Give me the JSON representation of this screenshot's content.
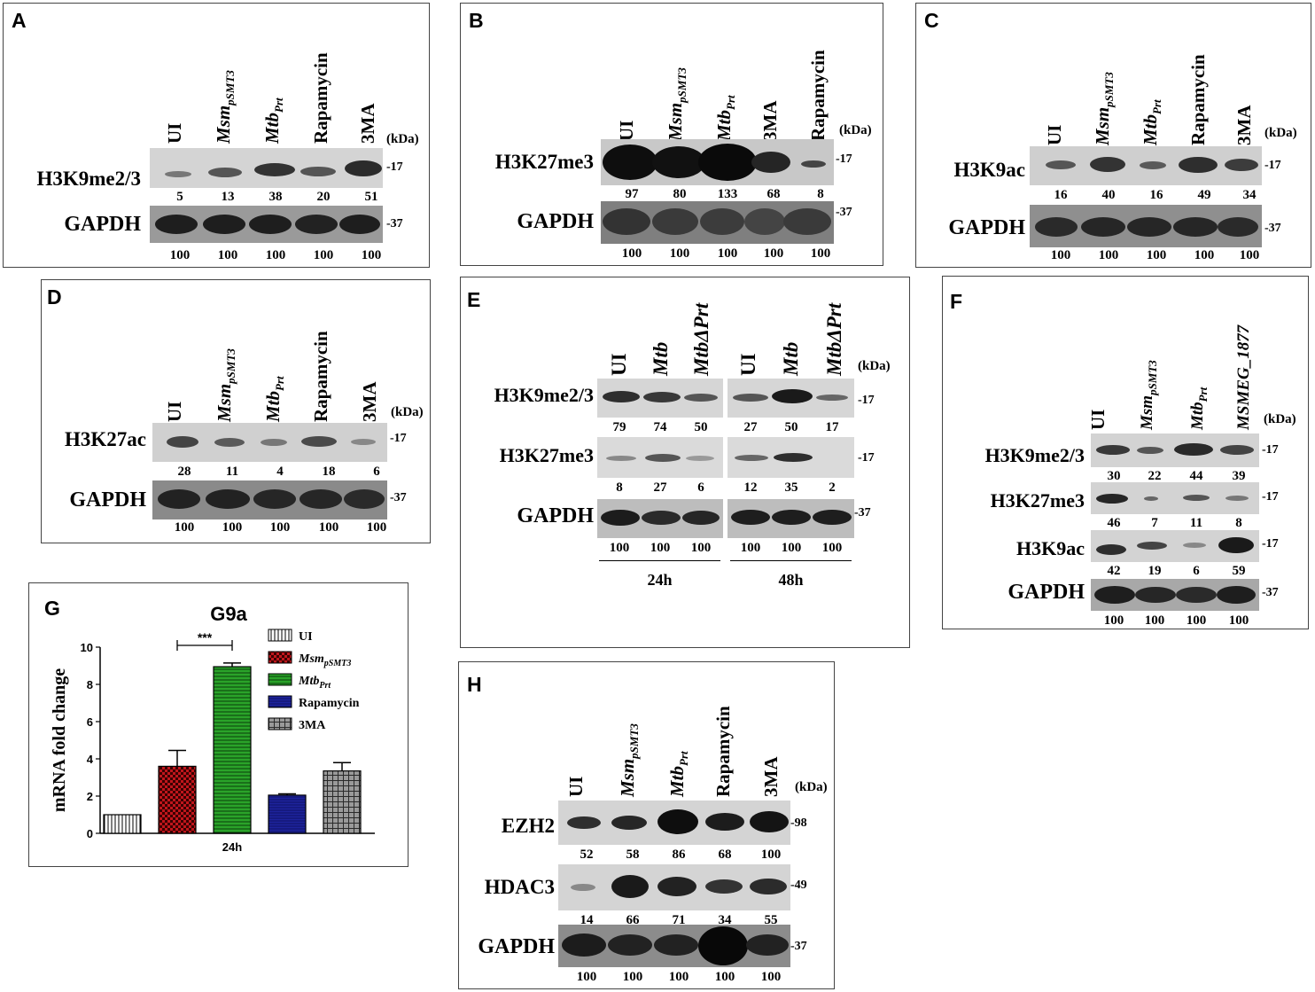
{
  "common": {
    "kda": "(kDa)",
    "ui": "UI",
    "msm": "Msm",
    "msm_sub": "pSMT3",
    "mtb": "Mtb",
    "mtb_sub": "Prt",
    "rapamycin": "Rapamycin",
    "three_ma": "3MA",
    "mtb_dprt": "MtbΔPrt",
    "msmeg": "MSMEG_1877",
    "gapdh": "GAPDH",
    "mw17": "-17",
    "mw37": "-37",
    "mw98": "-98",
    "mw49": "-49"
  },
  "panelA": {
    "label": "A",
    "row1": "H3K9me2/3",
    "row1_vals": [
      "5",
      "13",
      "38",
      "20",
      "51"
    ],
    "gapdh_vals": [
      "100",
      "100",
      "100",
      "100",
      "100"
    ]
  },
  "panelB": {
    "label": "B",
    "row1": "H3K27me3",
    "row1_vals": [
      "97",
      "80",
      "133",
      "68",
      "8"
    ],
    "gapdh_vals": [
      "100",
      "100",
      "100",
      "100",
      "100"
    ]
  },
  "panelC": {
    "label": "C",
    "row1": "H3K9ac",
    "row1_vals": [
      "16",
      "40",
      "16",
      "49",
      "34"
    ],
    "gapdh_vals": [
      "100",
      "100",
      "100",
      "100",
      "100"
    ]
  },
  "panelD": {
    "label": "D",
    "row1": "H3K27ac",
    "row1_vals": [
      "28",
      "11",
      "4",
      "18",
      "6"
    ],
    "gapdh_vals": [
      "100",
      "100",
      "100",
      "100",
      "100"
    ]
  },
  "panelE": {
    "label": "E",
    "row1": "H3K9me2/3",
    "row2": "H3K27me3",
    "r1_24": [
      "79",
      "74",
      "50"
    ],
    "r1_48": [
      "27",
      "50",
      "17"
    ],
    "r2_24": [
      "8",
      "27",
      "6"
    ],
    "r2_48": [
      "12",
      "35",
      "2"
    ],
    "g_24": [
      "100",
      "100",
      "100"
    ],
    "g_48": [
      "100",
      "100",
      "100"
    ],
    "t24": "24h",
    "t48": "48h"
  },
  "panelF": {
    "label": "F",
    "row1": "H3K9me2/3",
    "row2": "H3K27me3",
    "row3": "H3K9ac",
    "r1_vals": [
      "30",
      "22",
      "44",
      "39"
    ],
    "r2_vals": [
      "46",
      "7",
      "11",
      "8"
    ],
    "r3_vals": [
      "42",
      "19",
      "6",
      "59"
    ],
    "gapdh_vals": [
      "100",
      "100",
      "100",
      "100"
    ]
  },
  "panelG": {
    "label": "G"
  },
  "panelH": {
    "label": "H",
    "row1": "EZH2",
    "row2": "HDAC3",
    "r1_vals": [
      "52",
      "58",
      "86",
      "68",
      "100"
    ],
    "r2_vals": [
      "14",
      "66",
      "71",
      "34",
      "55"
    ],
    "gapdh_vals": [
      "100",
      "100",
      "100",
      "100",
      "100"
    ]
  },
  "chart_data": {
    "type": "bar",
    "title": "G9a",
    "ylabel": "mRNA fold change",
    "xlabel": "24h",
    "ylim": [
      0,
      10
    ],
    "yticks": [
      "0",
      "2",
      "4",
      "6",
      "8",
      "10"
    ],
    "significance": "***",
    "legend_position": "right",
    "series": [
      {
        "name": "UI",
        "value": 1.0,
        "error": 0,
        "color": "#ffffff"
      },
      {
        "name": "Msm",
        "name_sub": "pSMT3",
        "value": 3.6,
        "error": 0.85,
        "color": "#c0161c"
      },
      {
        "name": "Mtb",
        "name_sub": "Prt",
        "value": 8.95,
        "error": 0.2,
        "color": "#2aa329"
      },
      {
        "name": "Rapamycin",
        "value": 2.05,
        "error": 0.07,
        "color": "#1d239c"
      },
      {
        "name": "3MA",
        "value": 3.35,
        "error": 0.45,
        "color": "#8c8c8c"
      }
    ]
  }
}
